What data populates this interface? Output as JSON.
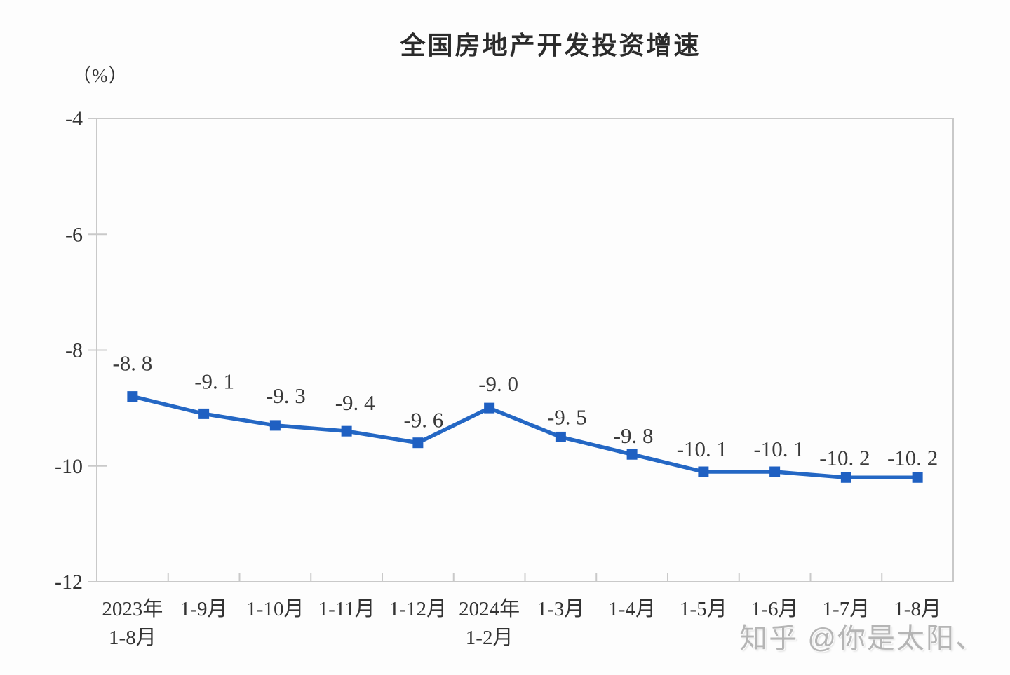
{
  "chart_data": {
    "type": "line",
    "title": "全国房地产开发投资增速",
    "unit_label": "（%）",
    "categories": [
      [
        "2023年",
        "1-8月"
      ],
      [
        "1-9月"
      ],
      [
        "1-10月"
      ],
      [
        "1-11月"
      ],
      [
        "1-12月"
      ],
      [
        "2024年",
        "1-2月"
      ],
      [
        "1-3月"
      ],
      [
        "1-4月"
      ],
      [
        "1-5月"
      ],
      [
        "1-6月"
      ],
      [
        "1-7月"
      ],
      [
        "1-8月"
      ]
    ],
    "series": [
      {
        "name": "全国房地产开发投资增速",
        "values": [
          -8.8,
          -9.1,
          -9.3,
          -9.4,
          -9.6,
          -9.0,
          -9.5,
          -9.8,
          -10.1,
          -10.1,
          -10.2,
          -10.2
        ]
      }
    ],
    "point_labels": [
      "-8. 8",
      "-9. 1",
      "-9. 3",
      "-9. 4",
      "-9. 6",
      "-9. 0",
      "-9. 5",
      "-9. 8",
      "-10. 1",
      "-10. 1",
      "-10. 2",
      "-10. 2"
    ],
    "y_ticks": [
      -4,
      -6,
      -8,
      -10,
      -12
    ],
    "y_tick_labels": [
      "-4",
      "-6",
      "-8",
      "-10",
      "-12"
    ],
    "ylim": [
      -12,
      -4
    ],
    "xlabel": "",
    "ylabel": "（%）",
    "grid": false,
    "legend_position": "none",
    "colors": {
      "series_line": "#2467c4",
      "series_marker": "#1f60c2",
      "axis_border": "#c9c9c9",
      "text": "#333333"
    }
  },
  "watermark": {
    "text": "知乎 @你是太阳、"
  }
}
